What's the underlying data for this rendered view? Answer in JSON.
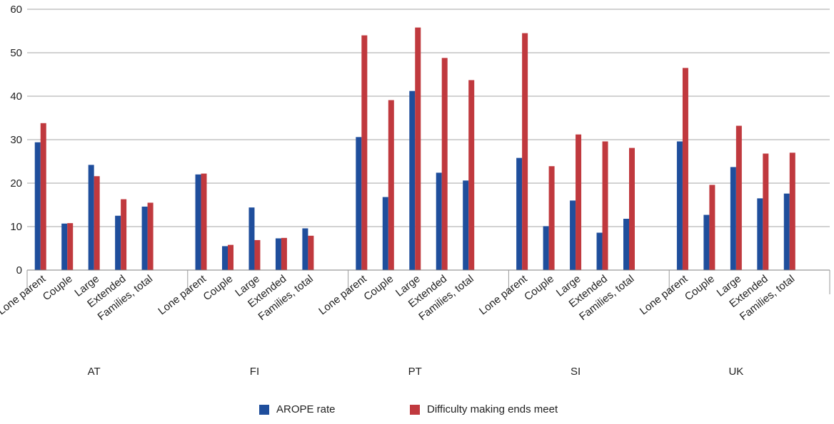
{
  "chart_data": {
    "type": "bar",
    "title": "",
    "xlabel": "",
    "ylabel": "",
    "ylim": [
      0,
      60
    ],
    "yticks": [
      0,
      10,
      20,
      30,
      40,
      50,
      60
    ],
    "grid": true,
    "legend_position": "bottom",
    "groups": [
      "AT",
      "FI",
      "PT",
      "SI",
      "UK"
    ],
    "categories": [
      "Lone parent",
      "Couple",
      "Large",
      "Extended",
      "Families, total"
    ],
    "series": [
      {
        "name": "AROPE rate",
        "color": "#1f4e9c",
        "values": [
          [
            29.4,
            10.7,
            24.2,
            12.5,
            14.6
          ],
          [
            22.0,
            5.5,
            14.4,
            7.3,
            9.6
          ],
          [
            30.6,
            16.8,
            41.2,
            22.4,
            20.6
          ],
          [
            25.8,
            10.1,
            16.0,
            8.6,
            11.8
          ],
          [
            29.6,
            12.7,
            23.7,
            16.5,
            17.6
          ]
        ]
      },
      {
        "name": "Difficulty making ends meet",
        "color": "#c0393e",
        "values": [
          [
            33.8,
            10.8,
            21.6,
            16.3,
            15.5
          ],
          [
            22.2,
            5.8,
            6.9,
            7.4,
            7.9
          ],
          [
            54.0,
            39.1,
            55.8,
            48.8,
            43.7
          ],
          [
            54.5,
            23.9,
            31.2,
            29.6,
            28.1
          ],
          [
            46.5,
            19.6,
            33.2,
            26.8,
            27.0
          ]
        ]
      }
    ]
  }
}
